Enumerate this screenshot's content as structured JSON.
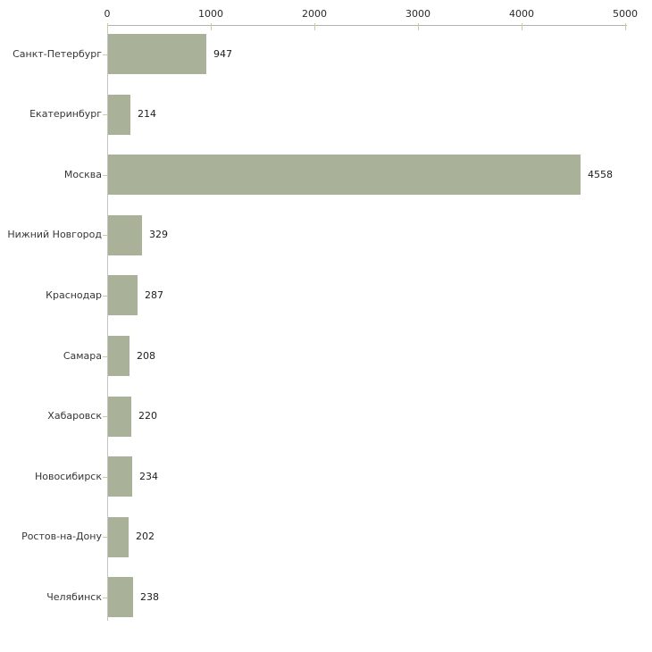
{
  "chart_data": {
    "type": "bar",
    "orientation": "horizontal",
    "title": "",
    "xlabel": "",
    "ylabel": "",
    "categories": [
      "Санкт-Петербург",
      "Екатеринбург",
      "Москва",
      "Нижний Новгород",
      "Краснодар",
      "Самара",
      "Хабаровск",
      "Новосибирск",
      "Ростов-на-Дону",
      "Челябинск"
    ],
    "values": [
      947,
      214,
      4558,
      329,
      287,
      208,
      220,
      234,
      202,
      238
    ],
    "value_labels": [
      "947",
      "214",
      "4558",
      "329",
      "287",
      "208",
      "220",
      "234",
      "202",
      "238"
    ],
    "x_ticks": [
      0,
      1000,
      2000,
      3000,
      4000,
      5000
    ],
    "x_tick_labels": [
      "0",
      "1000",
      "2000",
      "3000",
      "4000",
      "5000"
    ],
    "xlim": [
      0,
      5000
    ],
    "axis_position": "top",
    "grid": false,
    "legend": false,
    "colors": {
      "background": "#ffffff",
      "bar_fill": "#aab199",
      "x_axis_line": "#b2b2b2",
      "y_axis_line": "#c4c4c4",
      "tick_mark": "#cbcb9e",
      "tick_label_text": "#2a2a2a",
      "category_text": "#363636",
      "value_text": "#1c1c1c"
    }
  }
}
